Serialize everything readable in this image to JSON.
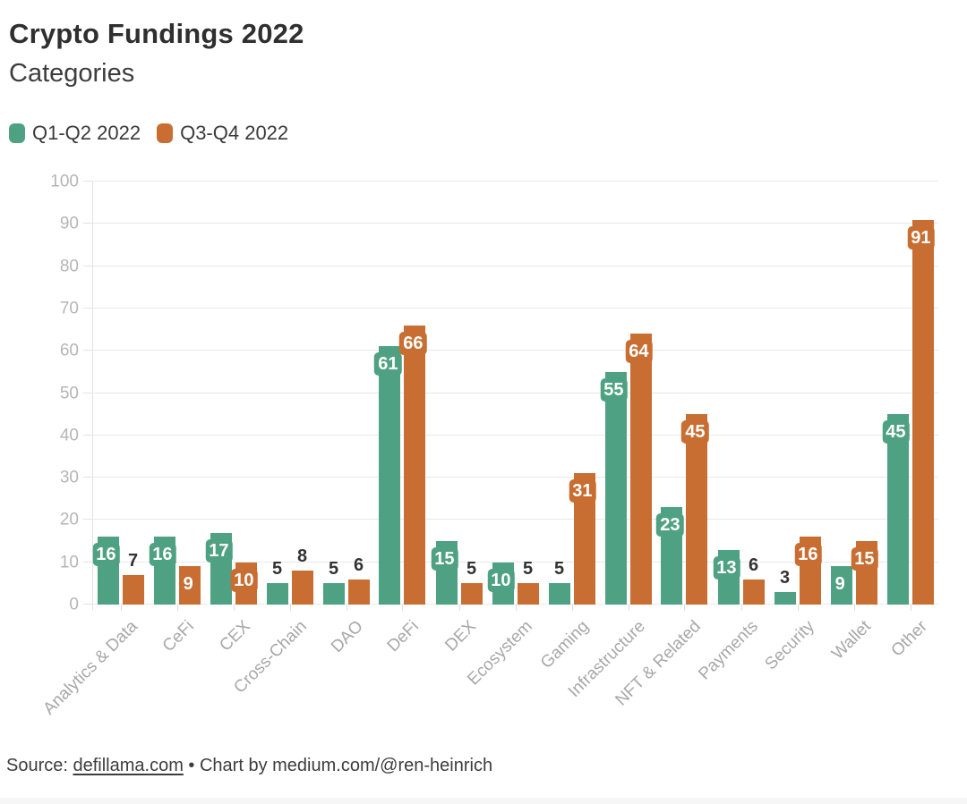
{
  "header": {
    "title": "Crypto Fundings 2022",
    "subtitle": "Categories"
  },
  "legend": {
    "items": [
      {
        "label": "Q1-Q2 2022",
        "color": "#4fa183"
      },
      {
        "label": "Q3-Q4 2022",
        "color": "#c96e33"
      }
    ]
  },
  "footer": {
    "source_label": "Source: ",
    "source_link_text": "defillama.com",
    "credit_text": " • Chart by medium.com/@ren-heinrich"
  },
  "chart_data": {
    "type": "bar",
    "title": "Crypto Fundings 2022",
    "subtitle": "Categories",
    "categories": [
      "Analytics & Data",
      "CeFi",
      "CEX",
      "Cross-Chain",
      "DAO",
      "DeFi",
      "DEX",
      "Ecosystem",
      "Gaming",
      "Infrastructure",
      "NFT & Related",
      "Payments",
      "Security",
      "Wallet",
      "Other"
    ],
    "series": [
      {
        "name": "Q1-Q2 2022",
        "color": "#4fa183",
        "values": [
          16,
          16,
          17,
          5,
          5,
          61,
          15,
          10,
          5,
          55,
          23,
          13,
          3,
          9,
          45
        ]
      },
      {
        "name": "Q3-Q4 2022",
        "color": "#c96e33",
        "values": [
          7,
          9,
          10,
          8,
          6,
          66,
          5,
          5,
          31,
          64,
          45,
          6,
          16,
          15,
          91
        ]
      }
    ],
    "xlabel": "",
    "ylabel": "",
    "ylim": [
      0,
      100
    ],
    "y_ticks": [
      0,
      10,
      20,
      30,
      40,
      50,
      60,
      70,
      80,
      90,
      100
    ],
    "grid": "horizontal-only",
    "legend_position": "top-left",
    "bar_label_badge_min_value": 9,
    "colors": {
      "grid": "#e8e8e8",
      "axis_tick_text": "#b5b5b5",
      "category_text": "#a8a8a8",
      "value_label_dark": "#333333"
    }
  }
}
